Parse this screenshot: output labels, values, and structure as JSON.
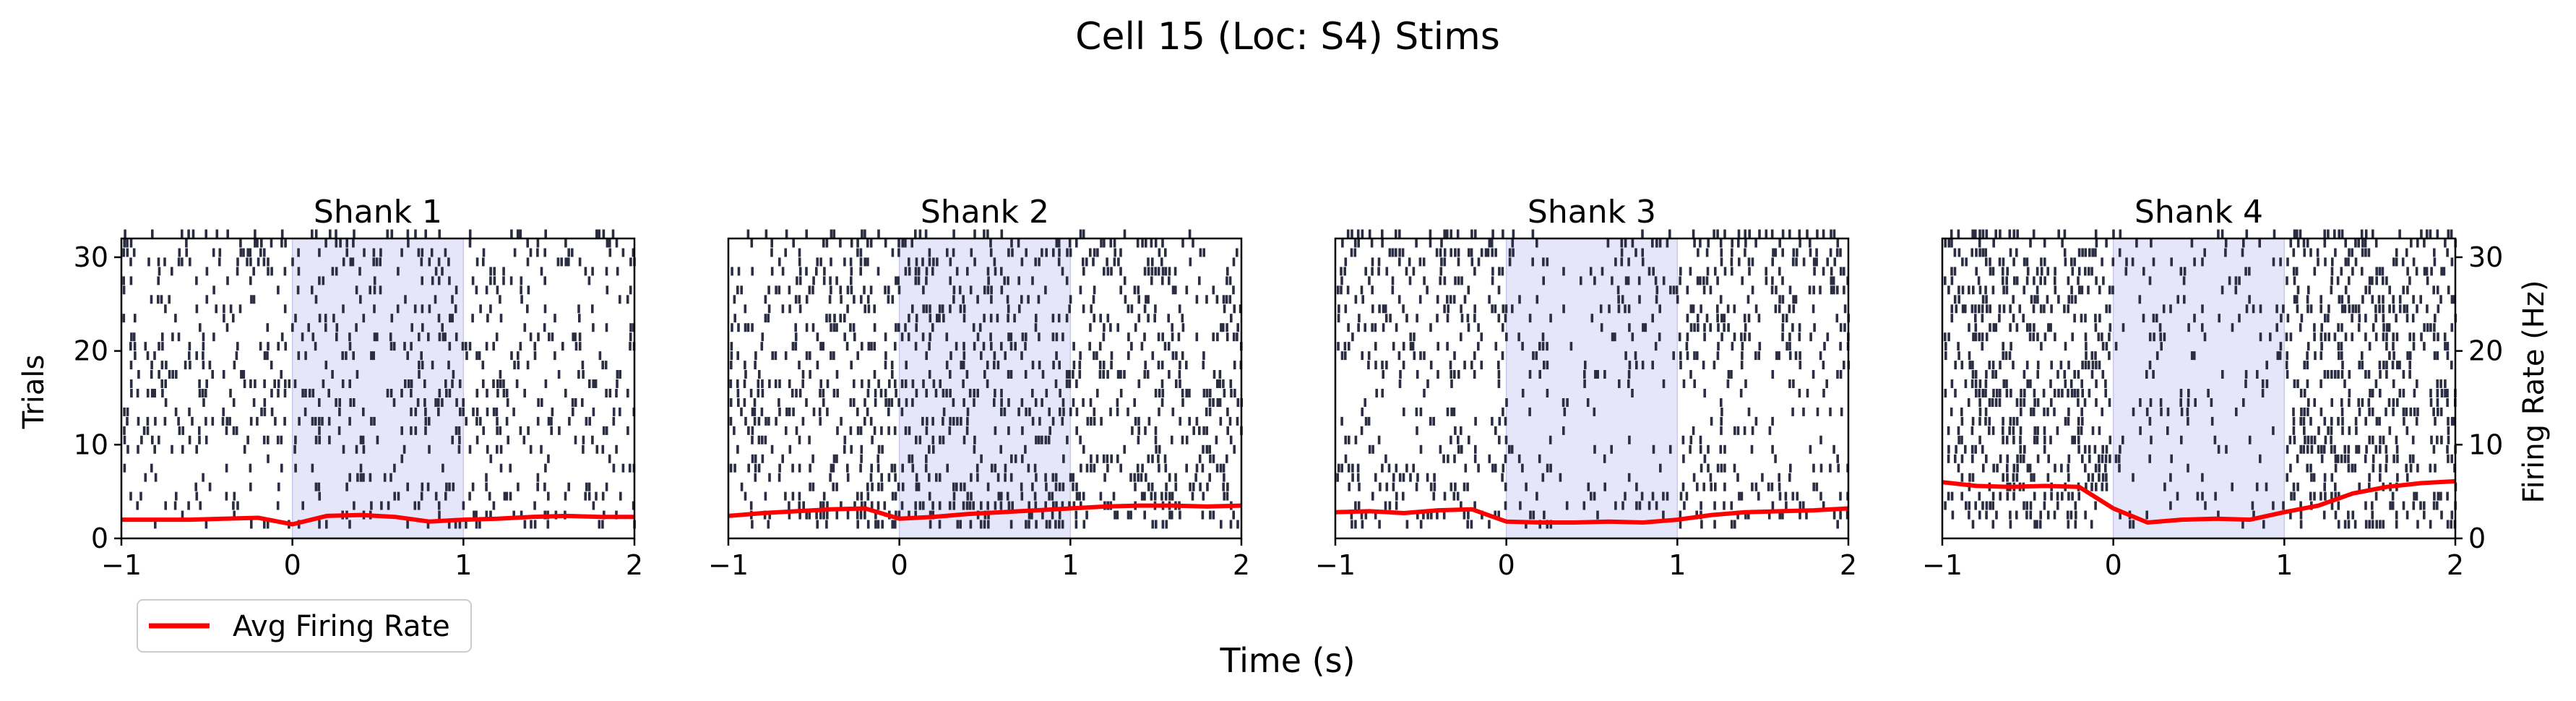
{
  "figure": {
    "title": "Cell 15 (Loc: S4) Stims",
    "xlabel": "Time (s)",
    "ylabel_left": "Trials",
    "ylabel_right": "Firing Rate (Hz)"
  },
  "legend": {
    "label": "Avg Firing Rate",
    "placement": "lower-left"
  },
  "colors": {
    "spike": "#2b2d42",
    "rate_line": "#ff0000",
    "stim_window": "#e6e6fa"
  },
  "chart_data": [
    {
      "type": "raster",
      "title": "Shank 1",
      "xlim": [
        -1,
        2
      ],
      "ylim": [
        0,
        32
      ],
      "xticks": [
        "−1",
        "0",
        "1",
        "2"
      ],
      "yticks": [
        "0",
        "10",
        "20",
        "30"
      ],
      "stim_window": [
        0,
        1
      ],
      "trials": 32,
      "trial_density": [
        0.2,
        0.26,
        0.28,
        0.22,
        0.18,
        0.16,
        0.18,
        0.14,
        0.22,
        0.26,
        0.3,
        0.32,
        0.3,
        0.34,
        0.36,
        0.3,
        0.24,
        0.26,
        0.28,
        0.3,
        0.26,
        0.28,
        0.24,
        0.22,
        0.24,
        0.22,
        0.26,
        0.24,
        0.3,
        0.34,
        0.32,
        0.3
      ],
      "stim_gain": 1.05,
      "rate_series": {
        "name": "Avg Firing Rate",
        "x": [
          -1,
          -0.8,
          -0.6,
          -0.4,
          -0.2,
          0,
          0.2,
          0.4,
          0.6,
          0.8,
          1,
          1.2,
          1.4,
          1.6,
          1.8,
          2
        ],
        "y": [
          2.0,
          2.0,
          2.0,
          2.1,
          2.2,
          1.5,
          2.4,
          2.5,
          2.3,
          1.8,
          2.0,
          2.1,
          2.3,
          2.4,
          2.3,
          2.3
        ]
      }
    },
    {
      "type": "raster",
      "title": "Shank 2",
      "xlim": [
        -1,
        2
      ],
      "ylim": [
        0,
        32
      ],
      "xticks": [
        "−1",
        "0",
        "1",
        "2"
      ],
      "yticks": [],
      "stim_window": [
        0,
        1
      ],
      "trials": 32,
      "trial_density": [
        0.42,
        0.44,
        0.4,
        0.38,
        0.36,
        0.4,
        0.42,
        0.38,
        0.34,
        0.36,
        0.4,
        0.42,
        0.38,
        0.36,
        0.4,
        0.38,
        0.34,
        0.36,
        0.38,
        0.4,
        0.36,
        0.38,
        0.4,
        0.38,
        0.34,
        0.36,
        0.38,
        0.4,
        0.42,
        0.4,
        0.38,
        0.4
      ],
      "stim_gain": 1.0,
      "rate_series": {
        "name": "Avg Firing Rate",
        "x": [
          -1,
          -0.8,
          -0.6,
          -0.4,
          -0.2,
          0,
          0.2,
          0.4,
          0.6,
          0.8,
          1,
          1.2,
          1.4,
          1.6,
          1.8,
          2
        ],
        "y": [
          2.4,
          2.7,
          2.9,
          3.1,
          3.2,
          2.1,
          2.3,
          2.6,
          2.8,
          3.0,
          3.2,
          3.4,
          3.5,
          3.5,
          3.4,
          3.5
        ]
      }
    },
    {
      "type": "raster",
      "title": "Shank 3",
      "xlim": [
        -1,
        2
      ],
      "ylim": [
        0,
        32
      ],
      "xticks": [
        "−1",
        "0",
        "1",
        "2"
      ],
      "yticks": [],
      "stim_window": [
        0,
        1
      ],
      "trials": 32,
      "trial_density": [
        0.38,
        0.4,
        0.36,
        0.34,
        0.3,
        0.32,
        0.34,
        0.28,
        0.22,
        0.18,
        0.16,
        0.18,
        0.2,
        0.16,
        0.14,
        0.18,
        0.24,
        0.3,
        0.34,
        0.36,
        0.38,
        0.34,
        0.36,
        0.4,
        0.38,
        0.42,
        0.44,
        0.46,
        0.48,
        0.5,
        0.52,
        0.54
      ],
      "stim_gain": 0.45,
      "rate_series": {
        "name": "Avg Firing Rate",
        "x": [
          -1,
          -0.8,
          -0.6,
          -0.4,
          -0.2,
          0,
          0.2,
          0.4,
          0.6,
          0.8,
          1,
          1.2,
          1.4,
          1.6,
          1.8,
          2
        ],
        "y": [
          2.8,
          2.9,
          2.7,
          3.0,
          3.1,
          1.8,
          1.7,
          1.7,
          1.8,
          1.7,
          2.0,
          2.5,
          2.8,
          2.9,
          3.0,
          3.2
        ]
      }
    },
    {
      "type": "raster",
      "title": "Shank 4",
      "xlim": [
        -1,
        2
      ],
      "ylim": [
        0,
        32
      ],
      "xticks": [
        "−1",
        "0",
        "1",
        "2"
      ],
      "yticks": [],
      "right_axis": {
        "ylabel": "Firing Rate (Hz)",
        "ylim": [
          0,
          32
        ],
        "yticks": [
          "0",
          "10",
          "20",
          "30"
        ]
      },
      "stim_window": [
        0,
        1
      ],
      "trials": 32,
      "trial_density": [
        0.46,
        0.5,
        0.48,
        0.52,
        0.5,
        0.46,
        0.48,
        0.5,
        0.52,
        0.48,
        0.44,
        0.46,
        0.5,
        0.52,
        0.48,
        0.46,
        0.5,
        0.52,
        0.48,
        0.46,
        0.5,
        0.48,
        0.46,
        0.5,
        0.52,
        0.48,
        0.5,
        0.52,
        0.54,
        0.5,
        0.48,
        0.52
      ],
      "stim_gain": 0.35,
      "rate_series": {
        "name": "Avg Firing Rate",
        "x": [
          -1,
          -0.8,
          -0.6,
          -0.4,
          -0.2,
          0,
          0.2,
          0.4,
          0.6,
          0.8,
          1,
          1.2,
          1.4,
          1.6,
          1.8,
          2
        ],
        "y": [
          6.0,
          5.6,
          5.5,
          5.6,
          5.5,
          3.2,
          1.7,
          2.0,
          2.1,
          2.0,
          2.8,
          3.5,
          4.8,
          5.5,
          5.9,
          6.1
        ]
      }
    }
  ]
}
